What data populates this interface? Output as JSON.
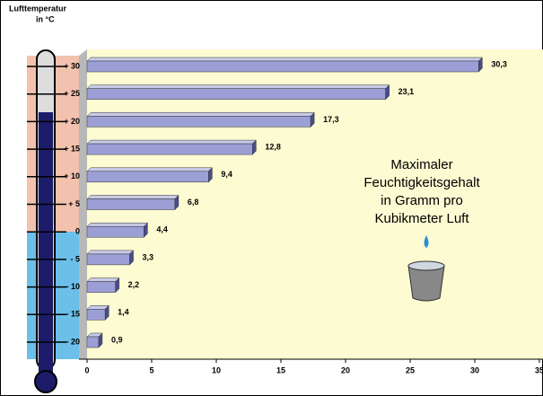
{
  "chart_data": {
    "type": "bar",
    "orientation": "horizontal",
    "axis_label": [
      "Lufttemperatur",
      "in °C"
    ],
    "categories": [
      "+ 30",
      "+ 25",
      "+ 20",
      "+ 15",
      "+ 10",
      "+ 5",
      "0",
      "- 5",
      "- 10",
      "- 15",
      "- 20"
    ],
    "values": [
      30.3,
      23.1,
      17.3,
      12.8,
      9.4,
      6.8,
      4.4,
      3.3,
      2.2,
      1.4,
      0.9
    ],
    "value_labels": [
      "30,3",
      "23,1",
      "17,3",
      "12,8",
      "9,4",
      "6,8",
      "4,4",
      "3,3",
      "2,2",
      "1,4",
      "0,9"
    ],
    "color": "#9c9fd6",
    "xlim": [
      0,
      35
    ],
    "xticks": [
      0,
      5,
      10,
      15,
      20,
      25,
      30,
      35
    ],
    "annotation": [
      "Maximaler",
      "Feuchtigkeitsgehalt",
      "in Gramm pro",
      "Kubikmeter Luft"
    ]
  }
}
